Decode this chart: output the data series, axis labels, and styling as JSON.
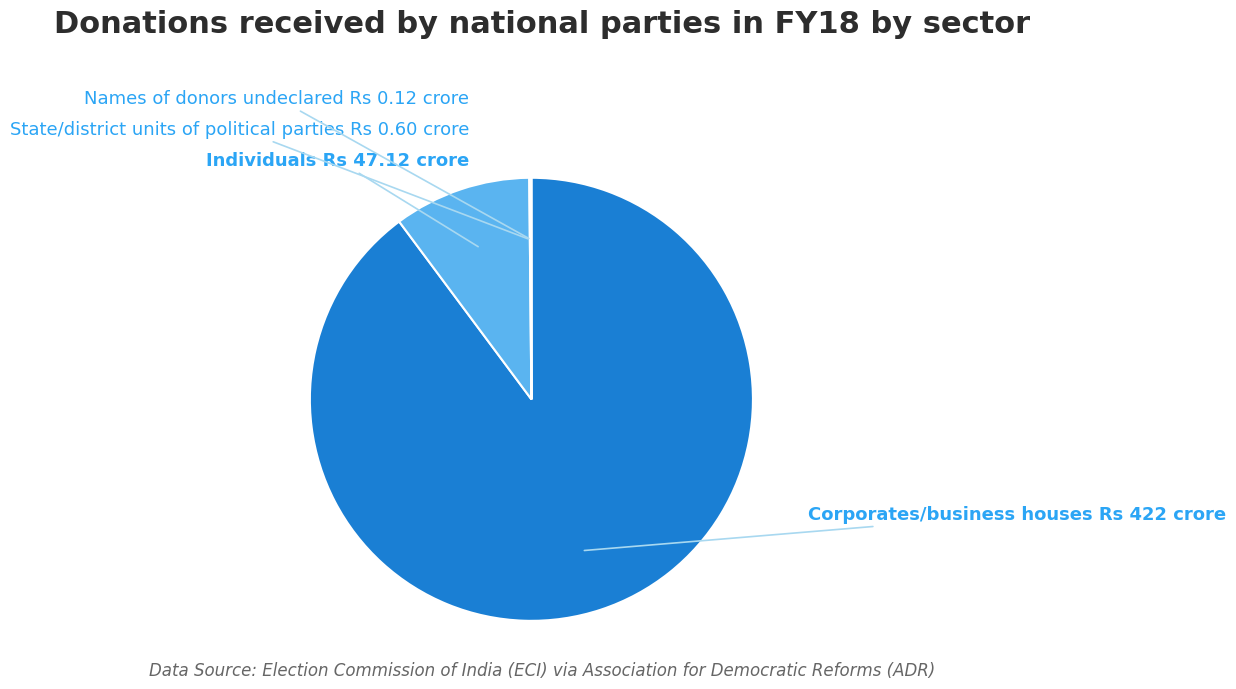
{
  "title": "Donations received by national parties in FY18 by sector",
  "title_fontsize": 22,
  "title_color": "#2d2d2d",
  "title_fontweight": "bold",
  "slices": [
    {
      "label": "Corporates/business houses Rs 422 crore",
      "value": 422,
      "color": "#1a7fd4"
    },
    {
      "label": "Individuals Rs 47.12 crore",
      "value": 47.12,
      "color": "#5ab4f0"
    },
    {
      "label": "State/district units of political parties Rs 0.60 crore",
      "value": 0.6,
      "color": "#7ecef5"
    },
    {
      "label": "Names of donors undeclared Rs 0.12 crore",
      "value": 0.12,
      "color": "#a8def8"
    }
  ],
  "label_color": "#2ba5f5",
  "label_fontsize": 13,
  "datasource": "Data Source: Election Commission of India (ECI) via Association for Democratic Reforms (ADR)",
  "datasource_fontsize": 12,
  "background_color": "#ffffff"
}
